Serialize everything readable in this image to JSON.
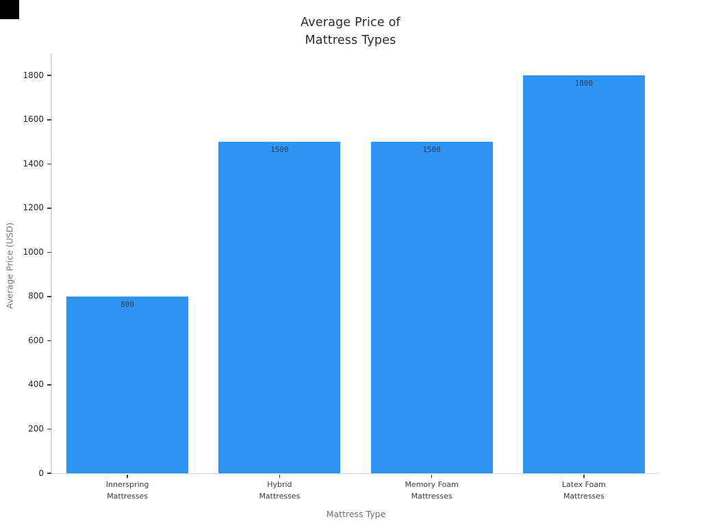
{
  "chart": {
    "title": "Average Price of\nMattress Types"
  },
  "chart_data": {
    "type": "bar",
    "title": "Average Price of\nMattress Types",
    "categories": [
      "Innerspring\nMattresses",
      "Hybrid\nMattresses",
      "Memory Foam\nMattresses",
      "Latex Foam\nMattresses"
    ],
    "values": [
      800,
      1500,
      1500,
      1800
    ],
    "bar_labels": [
      "800",
      "1500",
      "1500",
      "1800"
    ],
    "xlabel": "Mattress Type",
    "ylabel": "Average Price (USD)",
    "yticks": [
      0,
      200,
      400,
      600,
      800,
      1000,
      1200,
      1400,
      1600,
      1800
    ],
    "ylim": [
      0,
      1900
    ],
    "grid": false,
    "legend": null,
    "colors": {
      "bar": "#2f93f2",
      "bar_label": "#2a3f5f",
      "tick_label": "#262626",
      "category_label": "#3a3a3a",
      "axis_title": "#6e6e6e",
      "title": "#2b2b2b",
      "spine": "#d6d6d6",
      "tick_mark": "#404040",
      "background": "#ffffff",
      "corner_square": "#000000"
    }
  }
}
